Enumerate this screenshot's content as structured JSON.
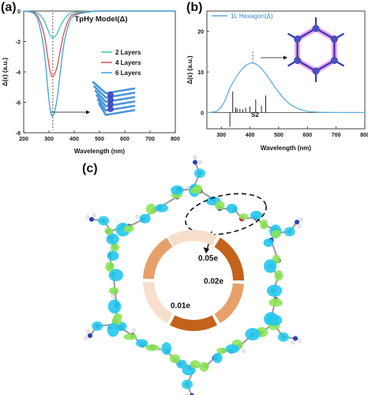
{
  "panels": {
    "a": "(a)",
    "b": "(b)",
    "c": "(c)"
  },
  "chart_data": [
    {
      "type": "line",
      "title": "TpHy Model(Δ)",
      "xlabel": "Wavelength (nm)",
      "ylabel": "Δ(ε) (a.u.)",
      "xlim": [
        200,
        800
      ],
      "ylim": [
        -8,
        0
      ],
      "xticks": [
        200,
        300,
        400,
        500,
        600,
        700,
        800
      ],
      "yticks": [
        0,
        -2,
        -4,
        -6,
        -8
      ],
      "legend_position": "right",
      "series": [
        {
          "name": "2 Layers",
          "color": "#3cc5b4",
          "x": [
            200,
            240,
            260,
            280,
            295,
            305,
            315,
            330,
            345,
            360,
            380,
            400,
            450,
            500,
            600,
            800
          ],
          "y": [
            0,
            -0.05,
            -0.2,
            -0.6,
            -1.2,
            -1.6,
            -1.75,
            -1.55,
            -1.0,
            -0.55,
            -0.2,
            -0.08,
            -0.02,
            0,
            0,
            0
          ]
        },
        {
          "name": "4 Layers",
          "color": "#e34b4b",
          "x": [
            200,
            240,
            260,
            280,
            295,
            305,
            315,
            330,
            345,
            360,
            380,
            400,
            450,
            500,
            600,
            800
          ],
          "y": [
            0,
            -0.1,
            -0.5,
            -1.5,
            -3.0,
            -4.0,
            -4.3,
            -3.8,
            -2.6,
            -1.4,
            -0.5,
            -0.2,
            -0.05,
            0,
            0,
            0
          ]
        },
        {
          "name": "6 Layers",
          "color": "#3aa4e0",
          "x": [
            200,
            240,
            260,
            280,
            295,
            305,
            315,
            330,
            345,
            360,
            380,
            400,
            450,
            500,
            600,
            800
          ],
          "y": [
            0,
            -0.15,
            -0.8,
            -2.5,
            -5.0,
            -6.5,
            -6.9,
            -6.0,
            -4.0,
            -2.1,
            -0.8,
            -0.3,
            -0.08,
            0,
            0,
            0
          ]
        }
      ],
      "marker_x": 315
    },
    {
      "type": "line",
      "title": "",
      "xlabel": "Wavelength (nm)",
      "ylabel": "Δ(ε) (a.u.)",
      "xlim": [
        250,
        800
      ],
      "ylim": [
        -4,
        25
      ],
      "xticks": [
        300,
        400,
        500,
        600,
        700,
        800
      ],
      "yticks": [
        0,
        10,
        20
      ],
      "legend_position": "top-left",
      "series": [
        {
          "name": "1L Hexagon(Δ)",
          "color": "#5aaee0",
          "x": [
            250,
            270,
            290,
            310,
            330,
            350,
            370,
            390,
            410,
            430,
            450,
            470,
            500,
            530,
            560,
            600,
            650,
            700,
            800
          ],
          "y": [
            0,
            0.1,
            0.6,
            2.5,
            6.0,
            8.5,
            10.5,
            11.8,
            12.2,
            11.5,
            10.0,
            8.0,
            5.0,
            2.6,
            1.2,
            0.3,
            0.05,
            0,
            0
          ]
        }
      ],
      "sticks": {
        "x": [
          330,
          340,
          350,
          355,
          365,
          375,
          385,
          400,
          420,
          440,
          455
        ],
        "y": [
          -3.5,
          5.2,
          1.3,
          1.0,
          0.9,
          0.8,
          1.2,
          1.5,
          3.2,
          1.7,
          4.2
        ]
      },
      "annotation": "S2",
      "marker_x": 410
    }
  ],
  "charge_labels": [
    "0.05e",
    "0.02e",
    "0.01e"
  ],
  "colors": {
    "carbon": "#707070",
    "nitrogen": "#2a3fb0",
    "oxygen": "#d03030",
    "hydrogen": "#f0f0f0",
    "isosurface_cyan": "#22c8f0",
    "isosurface_green": "#8ee65a",
    "ring_dark": "#c4621c",
    "ring_mid": "#e8a06a",
    "ring_light": "#f7dfcc",
    "hexagon_glow": "#e060d0"
  }
}
